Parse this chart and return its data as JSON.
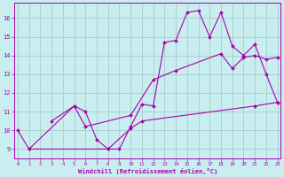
{
  "xlabel": "Windchill (Refroidissement éolien,°C)",
  "background_color": "#c8eef0",
  "line_color": "#aa00aa",
  "grid_color": "#aacccc",
  "x_ticks": [
    0,
    1,
    2,
    3,
    4,
    5,
    6,
    7,
    8,
    9,
    10,
    11,
    12,
    13,
    14,
    15,
    16,
    17,
    18,
    19,
    20,
    21,
    22,
    23
  ],
  "ylim": [
    8.5,
    16.8
  ],
  "xlim": [
    -0.3,
    23.3
  ],
  "yticks": [
    9,
    10,
    11,
    12,
    13,
    14,
    15,
    16
  ],
  "line1_x": [
    0,
    1,
    5,
    6,
    7,
    8,
    9,
    10,
    11,
    12,
    13,
    14,
    15,
    16,
    17,
    18,
    19,
    20,
    21,
    22,
    23
  ],
  "line1_y": [
    10.0,
    9.0,
    11.3,
    11.0,
    9.5,
    9.0,
    9.0,
    10.2,
    11.4,
    11.3,
    14.7,
    14.8,
    16.3,
    16.4,
    15.0,
    16.3,
    14.5,
    14.0,
    14.6,
    13.0,
    11.5
  ],
  "line2_x": [
    3,
    5,
    6,
    10,
    12,
    14,
    18,
    19,
    20,
    21,
    22,
    23
  ],
  "line2_y": [
    10.5,
    11.3,
    10.2,
    10.8,
    12.7,
    13.2,
    14.1,
    13.3,
    13.9,
    14.0,
    13.8,
    13.9
  ],
  "line3_x": [
    1,
    8,
    10,
    11,
    21,
    23
  ],
  "line3_y": [
    9.0,
    9.0,
    10.1,
    10.5,
    11.3,
    11.5
  ]
}
